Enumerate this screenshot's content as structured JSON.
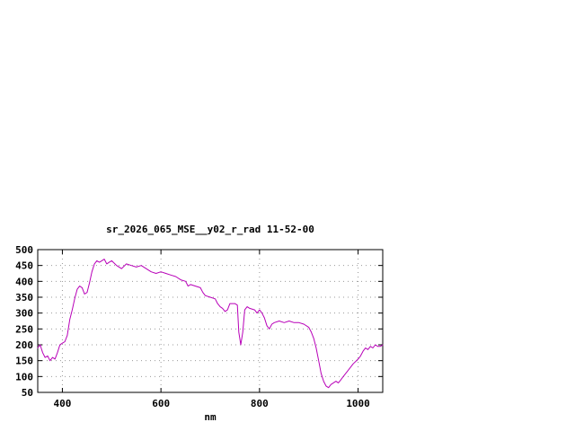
{
  "page": {
    "background": "#ffffff"
  },
  "chart_data": {
    "type": "line",
    "title": "sr_2026_065_MSE__y02_r_rad 11-52-00",
    "xlabel": "nm",
    "ylabel": "",
    "xlim": [
      350,
      1050
    ],
    "ylim": [
      50,
      500
    ],
    "xticks": [
      400,
      600,
      800,
      1000
    ],
    "yticks": [
      50,
      100,
      150,
      200,
      250,
      300,
      350,
      400,
      450,
      500
    ],
    "grid": true,
    "legend": "none",
    "line_color": "#b800b8",
    "axis_color": "#000000",
    "grid_color": "#999999",
    "x": [
      350,
      355,
      360,
      365,
      370,
      375,
      380,
      385,
      390,
      395,
      400,
      405,
      410,
      415,
      420,
      425,
      430,
      435,
      440,
      445,
      450,
      455,
      460,
      465,
      470,
      475,
      480,
      485,
      490,
      495,
      500,
      510,
      520,
      530,
      540,
      550,
      560,
      570,
      580,
      590,
      600,
      610,
      620,
      630,
      640,
      650,
      655,
      660,
      670,
      680,
      685,
      690,
      700,
      710,
      715,
      720,
      725,
      730,
      735,
      740,
      750,
      755,
      758,
      762,
      766,
      770,
      775,
      780,
      790,
      795,
      800,
      805,
      810,
      815,
      820,
      825,
      830,
      840,
      850,
      860,
      870,
      880,
      890,
      900,
      905,
      910,
      915,
      920,
      925,
      930,
      935,
      940,
      945,
      950,
      955,
      960,
      965,
      970,
      980,
      990,
      1000,
      1005,
      1010,
      1015,
      1020,
      1025,
      1030,
      1035,
      1040,
      1045,
      1050
    ],
    "values": [
      190,
      200,
      175,
      160,
      165,
      150,
      160,
      155,
      175,
      200,
      205,
      210,
      230,
      280,
      310,
      345,
      375,
      385,
      380,
      360,
      365,
      395,
      430,
      455,
      465,
      460,
      465,
      470,
      455,
      460,
      465,
      450,
      440,
      455,
      450,
      445,
      450,
      440,
      430,
      425,
      430,
      425,
      420,
      415,
      405,
      400,
      385,
      390,
      385,
      380,
      365,
      355,
      350,
      345,
      330,
      320,
      315,
      305,
      310,
      330,
      330,
      325,
      240,
      200,
      240,
      310,
      320,
      315,
      310,
      300,
      310,
      300,
      285,
      260,
      250,
      265,
      270,
      275,
      270,
      275,
      270,
      270,
      265,
      255,
      240,
      220,
      190,
      150,
      110,
      85,
      70,
      65,
      75,
      80,
      85,
      80,
      90,
      100,
      120,
      140,
      155,
      165,
      180,
      190,
      185,
      195,
      190,
      200,
      195,
      195,
      200
    ]
  }
}
